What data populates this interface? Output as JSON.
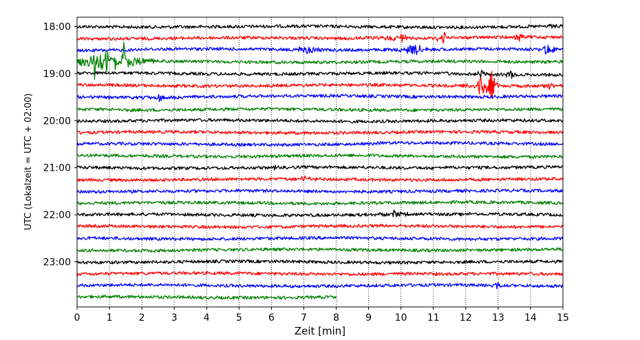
{
  "chart_data": {
    "type": "line",
    "title": "",
    "xlabel": "Zeit  [min]",
    "ylabel": "UTC (Lokalzeit = UTC + 02:00)",
    "xlim": [
      0,
      15
    ],
    "x_ticks": [
      "0",
      "1",
      "2",
      "3",
      "4",
      "5",
      "6",
      "7",
      "8",
      "9",
      "10",
      "11",
      "12",
      "13",
      "14",
      "15"
    ],
    "y_ticks": [
      "18:00",
      "19:00",
      "20:00",
      "21:00",
      "22:00",
      "23:00"
    ],
    "grid": "vertical-dotted",
    "colors": [
      "#000000",
      "#ff0000",
      "#0000ff",
      "#008000"
    ],
    "row_minutes": 15,
    "rows_start": "18:00",
    "rows_count": 24,
    "last_row_end_min": 8.0,
    "events": [
      {
        "row": 3,
        "x": 0.55,
        "amp": 3.2,
        "dur": 0.05
      },
      {
        "row": 3,
        "x": 0.9,
        "amp": 4.0,
        "dur": 0.06
      },
      {
        "row": 3,
        "x": 1.2,
        "amp": 3.0,
        "dur": 0.05
      },
      {
        "row": 3,
        "x": 1.45,
        "amp": 3.8,
        "dur": 0.06
      },
      {
        "row": 3,
        "x": 0.7,
        "amp": 1.5,
        "dur": 0.5
      },
      {
        "row": 3,
        "x": 1.7,
        "amp": 1.0,
        "dur": 0.4
      },
      {
        "row": 1,
        "x": 11.3,
        "amp": 1.2,
        "dur": 0.15
      },
      {
        "row": 1,
        "x": 10.0,
        "amp": 0.8,
        "dur": 0.3
      },
      {
        "row": 1,
        "x": 13.7,
        "amp": 0.8,
        "dur": 0.15
      },
      {
        "row": 2,
        "x": 7.1,
        "amp": 0.9,
        "dur": 0.2
      },
      {
        "row": 2,
        "x": 10.4,
        "amp": 1.1,
        "dur": 0.3
      },
      {
        "row": 2,
        "x": 14.5,
        "amp": 1.0,
        "dur": 0.25
      },
      {
        "row": 0,
        "x": 14.7,
        "amp": 0.7,
        "dur": 0.12
      },
      {
        "row": 4,
        "x": 12.5,
        "amp": 0.8,
        "dur": 0.15
      },
      {
        "row": 4,
        "x": 13.4,
        "amp": 1.0,
        "dur": 0.15
      },
      {
        "row": 5,
        "x": 12.5,
        "amp": 2.0,
        "dur": 0.2
      },
      {
        "row": 5,
        "x": 12.8,
        "amp": 3.5,
        "dur": 0.08
      },
      {
        "row": 5,
        "x": 14.6,
        "amp": 0.7,
        "dur": 0.1
      },
      {
        "row": 6,
        "x": 2.6,
        "amp": 0.7,
        "dur": 0.2
      },
      {
        "row": 13,
        "x": 7.0,
        "amp": 0.6,
        "dur": 0.15
      },
      {
        "row": 12,
        "x": 6.1,
        "amp": 0.6,
        "dur": 0.1
      },
      {
        "row": 16,
        "x": 9.8,
        "amp": 0.7,
        "dur": 0.3
      },
      {
        "row": 22,
        "x": 13.0,
        "amp": 0.6,
        "dur": 0.1
      }
    ]
  }
}
